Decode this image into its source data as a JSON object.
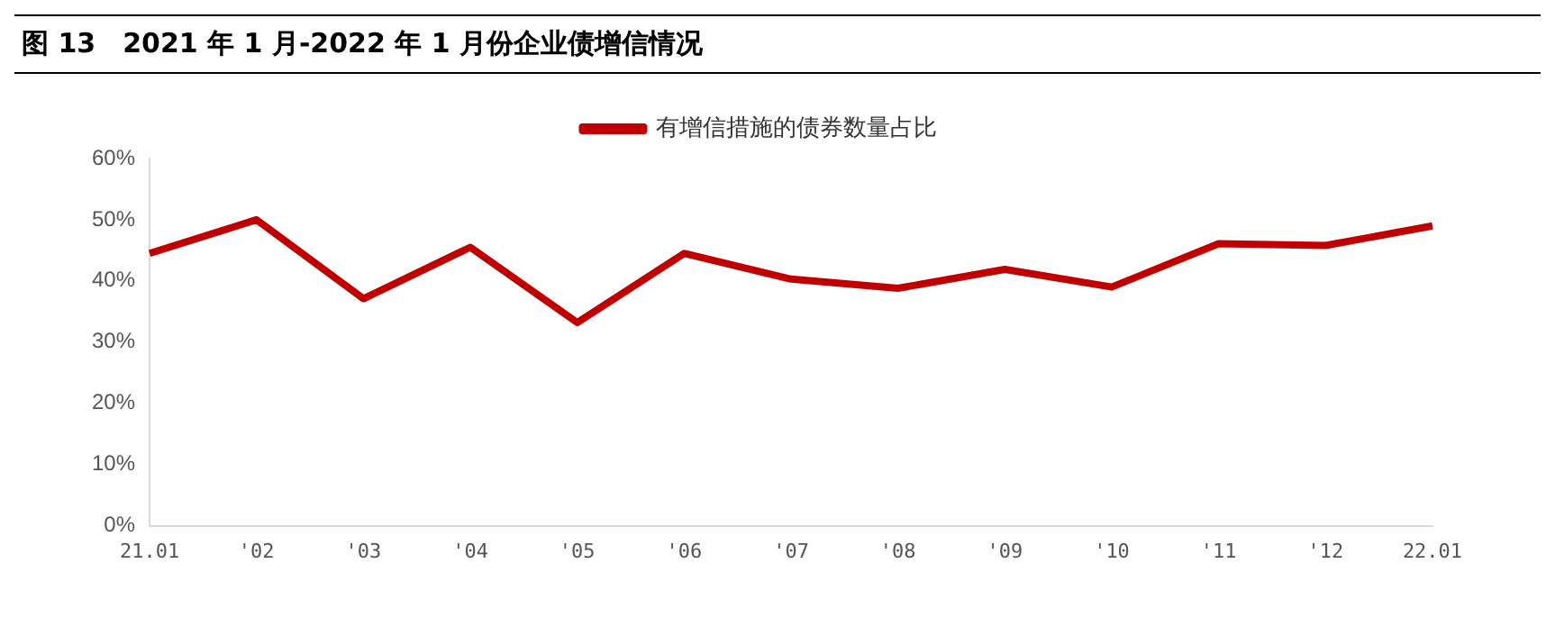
{
  "chart_data": {
    "type": "line",
    "title": "图 13　2021 年 1 月-2022 年 1 月份企业债增信情况",
    "categories": [
      "21.01",
      "'02",
      "'03",
      "'04",
      "'05",
      "'06",
      "'07",
      "'08",
      "'09",
      "'10",
      "'11",
      "'12",
      "22.01"
    ],
    "series": [
      {
        "name": "有增信措施的债券数量占比",
        "color": "#c00000",
        "values": [
          44.5,
          50,
          37.1,
          45.5,
          33.2,
          44.5,
          40.3,
          38.8,
          41.9,
          39,
          46.1,
          45.8,
          49
        ]
      }
    ],
    "ylim": [
      0,
      60
    ],
    "yticks": [
      {
        "value": 0,
        "label": "0%"
      },
      {
        "value": 10,
        "label": "10%"
      },
      {
        "value": 20,
        "label": "20%"
      },
      {
        "value": 30,
        "label": "30%"
      },
      {
        "value": 40,
        "label": "40%"
      },
      {
        "value": 50,
        "label": "50%"
      },
      {
        "value": 60,
        "label": "60%"
      }
    ],
    "grid": false,
    "legend": "top",
    "marker": "none",
    "line_style": "solid"
  }
}
